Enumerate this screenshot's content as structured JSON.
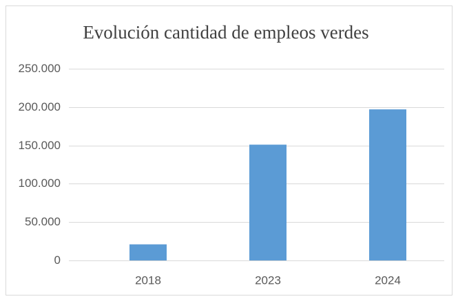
{
  "chart_data": {
    "type": "bar",
    "title": "Evolución cantidad de empleos verdes",
    "categories": [
      "2018",
      "2023",
      "2024"
    ],
    "values": [
      21000,
      151000,
      197000
    ],
    "color": "#5b9bd5",
    "ylim": [
      0,
      250000
    ],
    "yticks": [
      0,
      {
        "value": 50000,
        "label": "50.000"
      },
      {
        "value": 100000,
        "label": "100.000"
      },
      {
        "value": 150000,
        "label": "150.000"
      },
      {
        "value": 200000,
        "label": "200.000"
      },
      {
        "value": 250000,
        "label": "250.000"
      }
    ],
    "grid": true
  }
}
